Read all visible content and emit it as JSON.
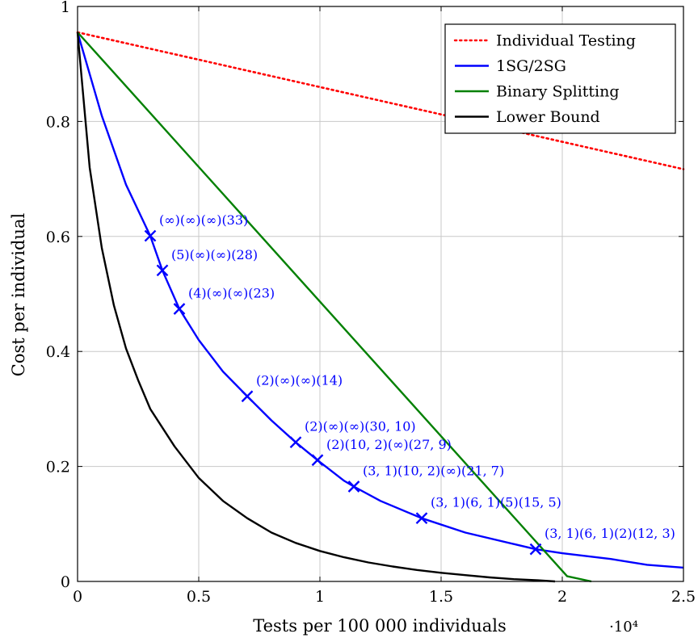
{
  "chart_data": {
    "type": "line",
    "xlabel": "Tests per 100 000 individuals",
    "ylabel": "Cost per individual",
    "x_multiplier": "·10⁴",
    "xlim": [
      0,
      25000
    ],
    "ylim": [
      0,
      1
    ],
    "xticks": [
      {
        "value": 0,
        "label": "0"
      },
      {
        "value": 5000,
        "label": "0.5"
      },
      {
        "value": 10000,
        "label": "1"
      },
      {
        "value": 15000,
        "label": "1.5"
      },
      {
        "value": 20000,
        "label": "2"
      },
      {
        "value": 25000,
        "label": "2.5"
      }
    ],
    "yticks": [
      {
        "value": 0,
        "label": "0"
      },
      {
        "value": 0.2,
        "label": "0.2"
      },
      {
        "value": 0.4,
        "label": "0.4"
      },
      {
        "value": 0.6,
        "label": "0.6"
      },
      {
        "value": 0.8,
        "label": "0.8"
      },
      {
        "value": 1,
        "label": "1"
      }
    ],
    "grid": true,
    "legend_position": "top-right",
    "series": [
      {
        "name": "Individual Testing",
        "color": "#ff0000",
        "style": "dotted",
        "points": [
          [
            0,
            0.955
          ],
          [
            25000,
            0.717
          ]
        ]
      },
      {
        "name": "1SG/2SG",
        "color": "#0000ff",
        "style": "solid",
        "points": [
          [
            0,
            0.955
          ],
          [
            1000,
            0.81
          ],
          [
            2000,
            0.69
          ],
          [
            3000,
            0.601
          ],
          [
            3500,
            0.541
          ],
          [
            4200,
            0.474
          ],
          [
            5000,
            0.42
          ],
          [
            6000,
            0.365
          ],
          [
            7000,
            0.322
          ],
          [
            8000,
            0.28
          ],
          [
            9000,
            0.242
          ],
          [
            9900,
            0.211
          ],
          [
            11000,
            0.175
          ],
          [
            11400,
            0.165
          ],
          [
            12500,
            0.14
          ],
          [
            14200,
            0.11
          ],
          [
            16000,
            0.085
          ],
          [
            18000,
            0.065
          ],
          [
            18900,
            0.056
          ],
          [
            20000,
            0.049
          ],
          [
            22000,
            0.039
          ],
          [
            23500,
            0.029
          ],
          [
            25000,
            0.024
          ]
        ]
      },
      {
        "name": "Binary Splitting",
        "color": "#008000",
        "style": "solid",
        "points": [
          [
            0,
            0.955
          ],
          [
            20200,
            0.009
          ],
          [
            21200,
            0
          ]
        ]
      },
      {
        "name": "Lower Bound",
        "color": "#000000",
        "style": "solid",
        "points": [
          [
            0,
            0.955
          ],
          [
            500,
            0.72
          ],
          [
            1000,
            0.58
          ],
          [
            1500,
            0.48
          ],
          [
            2000,
            0.405
          ],
          [
            2500,
            0.35
          ],
          [
            3000,
            0.3
          ],
          [
            4000,
            0.235
          ],
          [
            5000,
            0.18
          ],
          [
            6000,
            0.14
          ],
          [
            7000,
            0.11
          ],
          [
            8000,
            0.085
          ],
          [
            9000,
            0.067
          ],
          [
            10000,
            0.053
          ],
          [
            11000,
            0.042
          ],
          [
            12000,
            0.033
          ],
          [
            13000,
            0.026
          ],
          [
            14000,
            0.02
          ],
          [
            15000,
            0.015
          ],
          [
            16000,
            0.011
          ],
          [
            17000,
            0.007
          ],
          [
            18000,
            0.004
          ],
          [
            19000,
            0.002
          ],
          [
            19700,
            0
          ]
        ]
      }
    ],
    "markers": [
      {
        "x": 3000,
        "y": 0.601,
        "label": "(∞)(∞)(∞)(33)"
      },
      {
        "x": 3500,
        "y": 0.541,
        "label": "(5)(∞)(∞)(28)"
      },
      {
        "x": 4200,
        "y": 0.474,
        "label": "(4)(∞)(∞)(23)"
      },
      {
        "x": 7000,
        "y": 0.322,
        "label": "(2)(∞)(∞)(14)"
      },
      {
        "x": 9000,
        "y": 0.242,
        "label": "(2)(∞)(∞)(30, 10)"
      },
      {
        "x": 9900,
        "y": 0.211,
        "label": "(2)(10, 2)(∞)(27, 9)"
      },
      {
        "x": 11400,
        "y": 0.165,
        "label": "(3, 1)(10, 2)(∞)(21, 7)"
      },
      {
        "x": 14200,
        "y": 0.11,
        "label": "(3, 1)(6, 1)(5)(15, 5)"
      },
      {
        "x": 18900,
        "y": 0.056,
        "label": "(3, 1)(6, 1)(2)(12, 3)"
      }
    ]
  }
}
